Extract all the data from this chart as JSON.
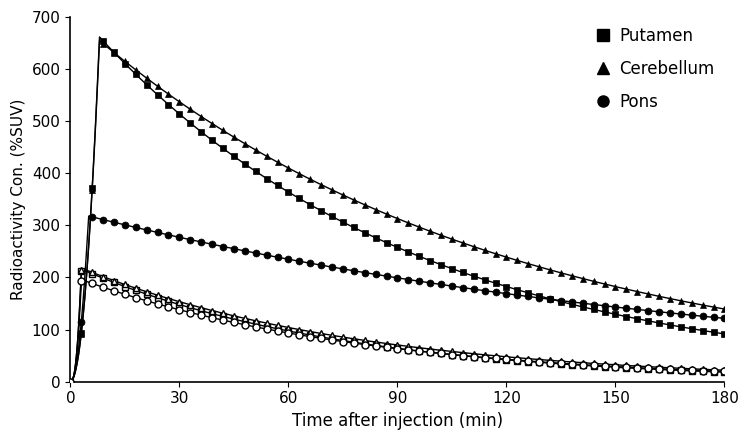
{
  "title": "",
  "xlabel": "Time after injection (min)",
  "ylabel": "Radioactivity Con. (%SUV)",
  "xlim": [
    0,
    180
  ],
  "ylim": [
    0,
    700
  ],
  "xticks": [
    0,
    30,
    60,
    90,
    120,
    150,
    180
  ],
  "yticks": [
    0,
    100,
    200,
    300,
    400,
    500,
    600,
    700
  ],
  "background": "#ffffff",
  "legend_labels": [
    "Putamen",
    "Cerebellum",
    "Pons"
  ],
  "curves": {
    "putamen_filled": {
      "peak_t": 8,
      "peak_v": 662,
      "decay": 0.0115,
      "plateau": 0,
      "rise_exp": 2.0
    },
    "cerebellum_filled": {
      "peak_t": 8,
      "peak_v": 655,
      "decay": 0.009,
      "plateau": 0,
      "rise_exp": 2.0
    },
    "pons_filled": {
      "peak_t": 5,
      "peak_v": 318,
      "decay": 0.0055,
      "plateau": 0,
      "rise_exp": 2.0
    },
    "putamen_open": {
      "peak_t": 3,
      "peak_v": 216,
      "decay": 0.014,
      "plateau": 0,
      "rise_exp": 2.5
    },
    "cerebellum_open": {
      "peak_t": 3,
      "peak_v": 218,
      "decay": 0.013,
      "plateau": 0,
      "rise_exp": 2.5
    },
    "pons_open": {
      "peak_t": 3,
      "peak_v": 196,
      "decay": 0.013,
      "plateau": 0,
      "rise_exp": 2.5
    }
  },
  "marker_interval": 3,
  "marker_size": 5,
  "linewidth": 1.0
}
